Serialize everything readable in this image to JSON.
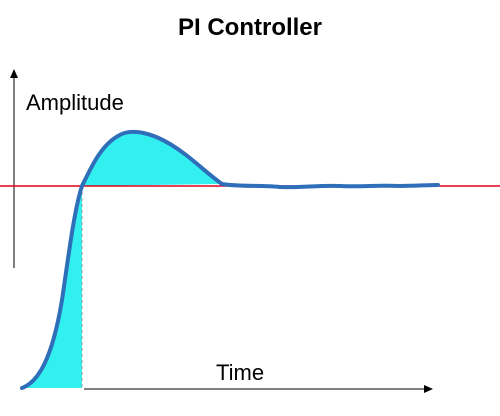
{
  "title": "PI Controller",
  "y_axis_label": "Amplitude",
  "x_axis_label": "Time",
  "colors": {
    "response_curve": "#2f6fba",
    "fill_area": "#33f0f0",
    "setpoint_line": "#e0001b",
    "axes": "#000000"
  }
}
